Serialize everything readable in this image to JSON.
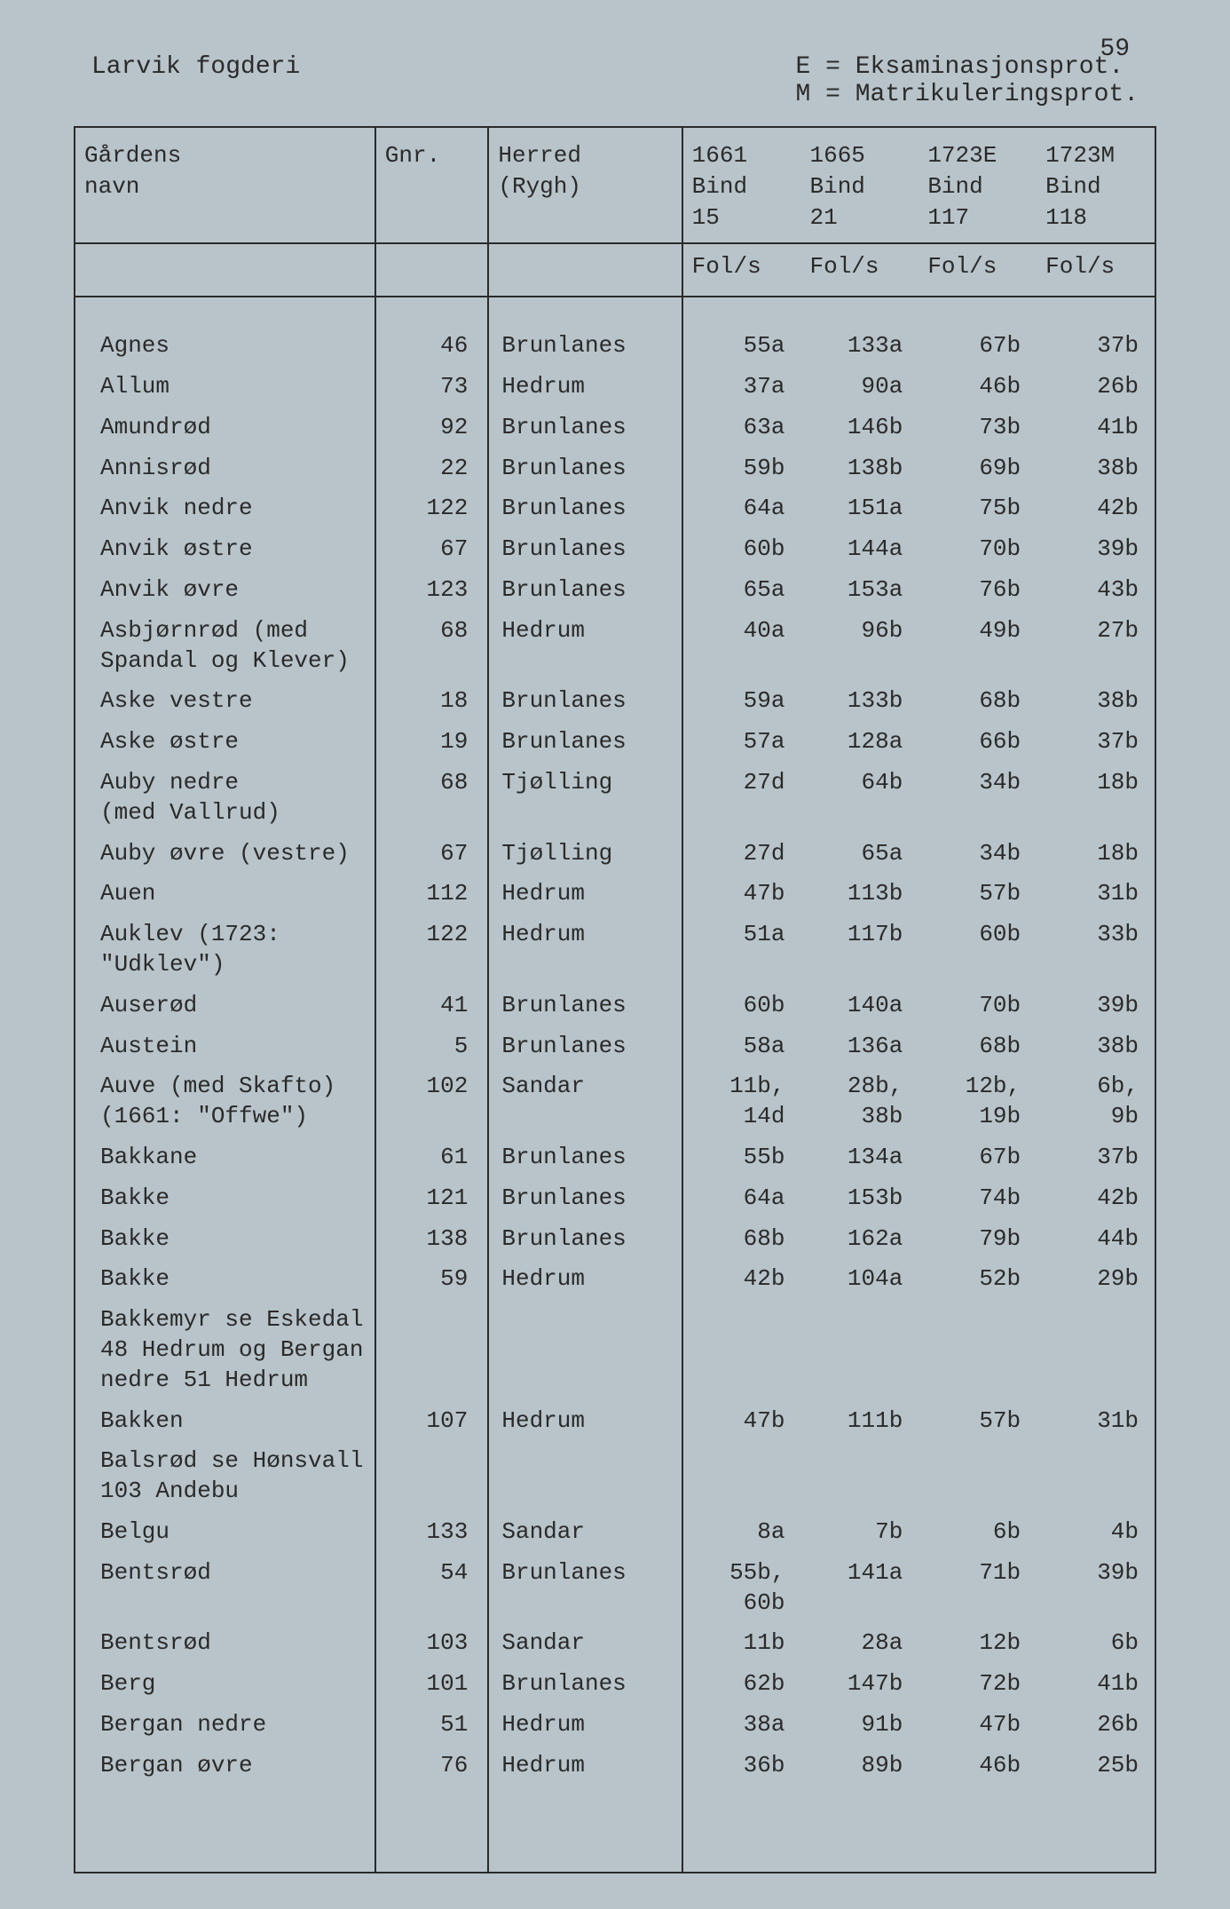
{
  "page_number": "59",
  "header_left": "Larvik fogderi",
  "header_right_line1": "E = Eksaminasjonsprot.",
  "header_right_line2": "M = Matrikuleringsprot.",
  "columns": {
    "name_l1": "Gårdens",
    "name_l2": "navn",
    "gnr": "Gnr.",
    "herred_l1": "Herred",
    "herred_l2": "(Rygh)",
    "c1_l1": "1661",
    "c1_l2": "Bind",
    "c1_l3": "15",
    "c2_l1": "1665",
    "c2_l2": "Bind",
    "c2_l3": "21",
    "c3_l1": "1723E",
    "c3_l2": "Bind",
    "c3_l3": "117",
    "c4_l1": "1723M",
    "c4_l2": "Bind",
    "c4_l3": "118",
    "fols": "Fol/s"
  },
  "rows": [
    {
      "name": "Agnes",
      "gnr": "46",
      "herred": "Brunlanes",
      "v1": "55a",
      "v2": "133a",
      "v3": "67b",
      "v4": "37b"
    },
    {
      "name": "Allum",
      "gnr": "73",
      "herred": "Hedrum",
      "v1": "37a",
      "v2": "90a",
      "v3": "46b",
      "v4": "26b"
    },
    {
      "name": "Amundrød",
      "gnr": "92",
      "herred": "Brunlanes",
      "v1": "63a",
      "v2": "146b",
      "v3": "73b",
      "v4": "41b"
    },
    {
      "name": "Annisrød",
      "gnr": "22",
      "herred": "Brunlanes",
      "v1": "59b",
      "v2": "138b",
      "v3": "69b",
      "v4": "38b"
    },
    {
      "name": "Anvik nedre",
      "gnr": "122",
      "herred": "Brunlanes",
      "v1": "64a",
      "v2": "151a",
      "v3": "75b",
      "v4": "42b"
    },
    {
      "name": "Anvik østre",
      "gnr": "67",
      "herred": "Brunlanes",
      "v1": "60b",
      "v2": "144a",
      "v3": "70b",
      "v4": "39b"
    },
    {
      "name": "Anvik øvre",
      "gnr": "123",
      "herred": "Brunlanes",
      "v1": "65a",
      "v2": "153a",
      "v3": "76b",
      "v4": "43b"
    },
    {
      "name": "Asbjørnrød (med\nSpandal og Klever)",
      "gnr": "68",
      "herred": "Hedrum",
      "v1": "40a",
      "v2": "96b",
      "v3": "49b",
      "v4": "27b"
    },
    {
      "name": "Aske vestre",
      "gnr": "18",
      "herred": "Brunlanes",
      "v1": "59a",
      "v2": "133b",
      "v3": "68b",
      "v4": "38b"
    },
    {
      "name": "Aske østre",
      "gnr": "19",
      "herred": "Brunlanes",
      "v1": "57a",
      "v2": "128a",
      "v3": "66b",
      "v4": "37b"
    },
    {
      "name": "Auby nedre\n(med Vallrud)",
      "gnr": "68",
      "herred": "Tjølling",
      "v1": "27d",
      "v2": "64b",
      "v3": "34b",
      "v4": "18b"
    },
    {
      "name": "Auby øvre (vestre)",
      "gnr": "67",
      "herred": "Tjølling",
      "v1": "27d",
      "v2": "65a",
      "v3": "34b",
      "v4": "18b"
    },
    {
      "name": "Auen",
      "gnr": "112",
      "herred": "Hedrum",
      "v1": "47b",
      "v2": "113b",
      "v3": "57b",
      "v4": "31b"
    },
    {
      "name": "Auklev (1723:\n\"Udklev\")",
      "gnr": "122",
      "herred": "Hedrum",
      "v1": "51a",
      "v2": "117b",
      "v3": "60b",
      "v4": "33b"
    },
    {
      "name": "Auserød",
      "gnr": "41",
      "herred": "Brunlanes",
      "v1": "60b",
      "v2": "140a",
      "v3": "70b",
      "v4": "39b"
    },
    {
      "name": "Austein",
      "gnr": "5",
      "herred": "Brunlanes",
      "v1": "58a",
      "v2": "136a",
      "v3": "68b",
      "v4": "38b"
    },
    {
      "name": "Auve (med Skafto)\n(1661: \"Offwe\")",
      "gnr": "102",
      "herred": "Sandar",
      "v1": "11b,\n14d",
      "v2": "28b,\n38b",
      "v3": "12b,\n19b",
      "v4": "6b,\n9b"
    },
    {
      "name": "Bakkane",
      "gnr": "61",
      "herred": "Brunlanes",
      "v1": "55b",
      "v2": "134a",
      "v3": "67b",
      "v4": "37b"
    },
    {
      "name": "Bakke",
      "gnr": "121",
      "herred": "Brunlanes",
      "v1": "64a",
      "v2": "153b",
      "v3": "74b",
      "v4": "42b"
    },
    {
      "name": "Bakke",
      "gnr": "138",
      "herred": "Brunlanes",
      "v1": "68b",
      "v2": "162a",
      "v3": "79b",
      "v4": "44b"
    },
    {
      "name": "Bakke",
      "gnr": "59",
      "herred": "Hedrum",
      "v1": "42b",
      "v2": "104a",
      "v3": "52b",
      "v4": "29b"
    },
    {
      "name": "Bakkemyr se Eskedal\n48 Hedrum og Bergan\nnedre 51 Hedrum",
      "gnr": "",
      "herred": "",
      "v1": "",
      "v2": "",
      "v3": "",
      "v4": ""
    },
    {
      "name": "Bakken",
      "gnr": "107",
      "herred": "Hedrum",
      "v1": "47b",
      "v2": "111b",
      "v3": "57b",
      "v4": "31b"
    },
    {
      "name": "Balsrød se Hønsvall\n103 Andebu",
      "gnr": "",
      "herred": "",
      "v1": "",
      "v2": "",
      "v3": "",
      "v4": ""
    },
    {
      "name": "Belgu",
      "gnr": "133",
      "herred": "Sandar",
      "v1": "8a",
      "v2": "7b",
      "v3": "6b",
      "v4": "4b"
    },
    {
      "name": "Bentsrød",
      "gnr": "54",
      "herred": "Brunlanes",
      "v1": "55b,\n60b",
      "v2": "141a",
      "v3": "71b",
      "v4": "39b"
    },
    {
      "name": "Bentsrød",
      "gnr": "103",
      "herred": "Sandar",
      "v1": "11b",
      "v2": "28a",
      "v3": "12b",
      "v4": "6b"
    },
    {
      "name": "Berg",
      "gnr": "101",
      "herred": "Brunlanes",
      "v1": "62b",
      "v2": "147b",
      "v3": "72b",
      "v4": "41b"
    },
    {
      "name": "Bergan nedre",
      "gnr": "51",
      "herred": "Hedrum",
      "v1": "38a",
      "v2": "91b",
      "v3": "47b",
      "v4": "26b"
    },
    {
      "name": "Bergan øvre",
      "gnr": "76",
      "herred": "Hedrum",
      "v1": "36b",
      "v2": "89b",
      "v3": "46b",
      "v4": "25b"
    }
  ]
}
